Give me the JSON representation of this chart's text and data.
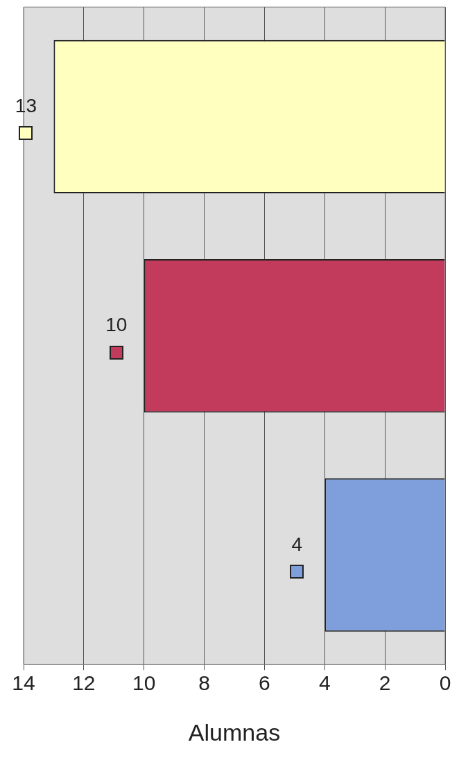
{
  "chart_data": {
    "type": "bar",
    "orientation": "horizontal",
    "xlabel": "Alumnas",
    "categories": [
      null,
      null,
      null
    ],
    "values": [
      13,
      10,
      4
    ],
    "colors": [
      "#ffffc0",
      "#c23a5c",
      "#7f9fdc"
    ],
    "xlim": [
      14,
      0
    ],
    "xticks": [
      0,
      2,
      4,
      6,
      8,
      10,
      12,
      14
    ],
    "grid": "x",
    "data_labels": true
  }
}
